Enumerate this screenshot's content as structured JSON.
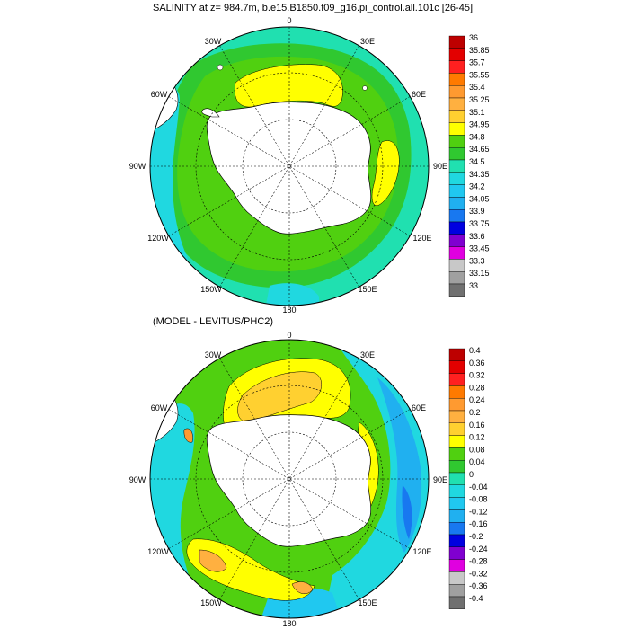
{
  "panels": [
    {
      "title": "SALINITY at z= 984.7m, b.e15.B1850.f09_g16.pi_control.all.101c [26-45]",
      "colorbar_labels": [
        "36",
        "35.85",
        "35.7",
        "35.55",
        "35.4",
        "35.25",
        "35.1",
        "34.95",
        "34.8",
        "34.65",
        "34.5",
        "34.35",
        "34.2",
        "34.05",
        "33.9",
        "33.75",
        "33.6",
        "33.45",
        "33.3",
        "33.15",
        "33"
      ],
      "longitude_labels": [
        "0",
        "30E",
        "60E",
        "90E",
        "120E",
        "150E",
        "180",
        "150W",
        "120W",
        "90W",
        "60W",
        "30W"
      ]
    },
    {
      "title": "(MODEL - LEVITUS/PHC2)",
      "colorbar_labels": [
        "0.4",
        "0.36",
        "0.32",
        "0.28",
        "0.24",
        "0.2",
        "0.16",
        "0.12",
        "0.08",
        "0.04",
        "0",
        "-0.04",
        "-0.08",
        "-0.12",
        "-0.16",
        "-0.2",
        "-0.24",
        "-0.28",
        "-0.32",
        "-0.36",
        "-0.4"
      ],
      "longitude_labels": [
        "0",
        "30E",
        "60E",
        "90E",
        "120E",
        "150E",
        "180",
        "150W",
        "120W",
        "90W",
        "60W",
        "30W"
      ]
    }
  ],
  "colormap": [
    "#bd0000",
    "#e30000",
    "#ff2020",
    "#ff7a00",
    "#ff9a30",
    "#ffb040",
    "#ffd030",
    "#ffff00",
    "#50d010",
    "#30c830",
    "#20e0b0",
    "#20d8e0",
    "#20c8f0",
    "#20b0f0",
    "#1878f0",
    "#0000e0",
    "#8000d0",
    "#e000e0",
    "#c8c8c8",
    "#a0a0a0",
    "#707070"
  ],
  "land_color": "#ffffff",
  "coast_color": "#000000"
}
